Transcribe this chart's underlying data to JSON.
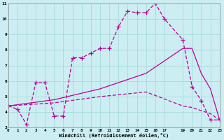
{
  "xlabel": "Windchill (Refroidissement éolien,°C)",
  "bg_color": "#cceef2",
  "grid_color": "#aadddd",
  "line_color": "#bb0099",
  "series1_x": [
    0,
    1,
    2,
    3,
    4,
    5,
    6,
    7,
    8,
    9,
    10,
    11,
    12,
    13,
    14,
    15,
    16,
    17,
    19,
    20,
    21,
    22,
    23
  ],
  "series1_y": [
    4.4,
    4.2,
    3.2,
    5.9,
    5.9,
    3.75,
    3.75,
    7.5,
    7.5,
    7.8,
    8.1,
    8.1,
    9.5,
    10.5,
    10.4,
    10.4,
    11.0,
    10.0,
    8.65,
    5.65,
    4.75,
    3.5,
    3.5
  ],
  "series2_x": [
    0,
    5,
    10,
    15,
    19,
    20,
    21,
    22,
    23
  ],
  "series2_y": [
    4.4,
    4.8,
    5.5,
    6.5,
    8.1,
    8.1,
    6.5,
    5.5,
    3.5
  ],
  "series3_x": [
    0,
    5,
    10,
    15,
    19,
    20,
    21,
    22,
    23
  ],
  "series3_y": [
    4.4,
    4.6,
    5.0,
    5.3,
    4.4,
    4.3,
    4.1,
    3.9,
    3.5
  ],
  "xlim": [
    0,
    23
  ],
  "ylim": [
    3,
    11
  ],
  "yticks": [
    3,
    4,
    5,
    6,
    7,
    8,
    9,
    10,
    11
  ],
  "xticks": [
    0,
    1,
    2,
    3,
    4,
    5,
    6,
    7,
    8,
    9,
    10,
    11,
    12,
    13,
    14,
    15,
    16,
    17,
    19,
    20,
    21,
    22,
    23
  ]
}
